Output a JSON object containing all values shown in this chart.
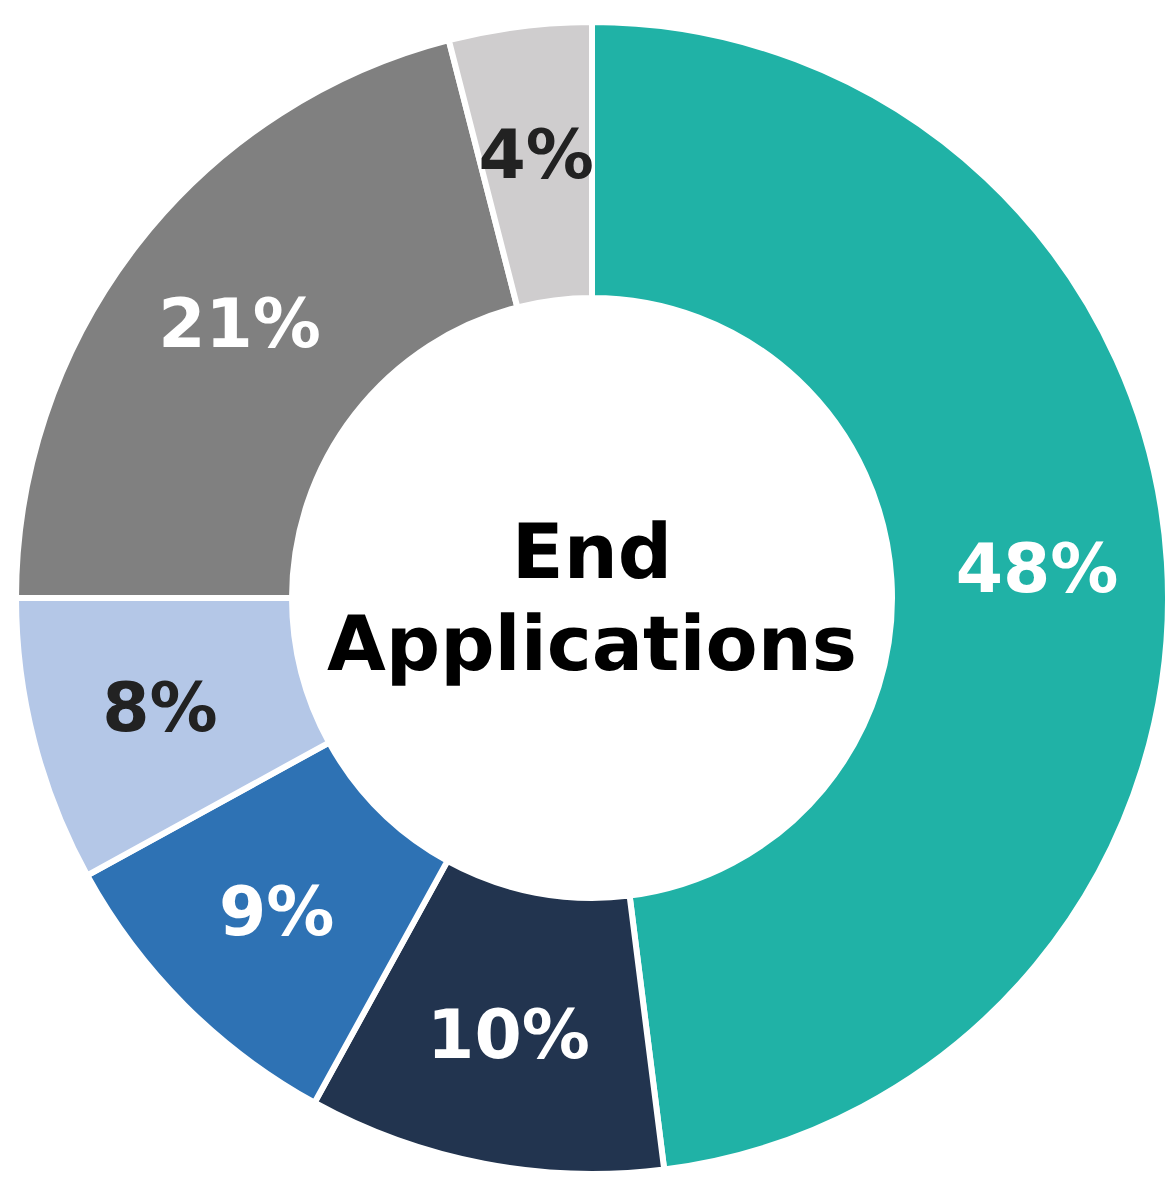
{
  "chart_data": {
    "type": "donut",
    "title": "End Applications",
    "categories": [
      null,
      null,
      null,
      null,
      null,
      null
    ],
    "values": [
      48,
      10,
      9,
      8,
      21,
      4
    ],
    "colors": [
      "#20b2a6",
      "#22344f",
      "#2e72b4",
      "#b4c7e7",
      "#808080",
      "#cfcdce"
    ],
    "value_labels": [
      "48%",
      "10%",
      "9%",
      "8%",
      "21%",
      "4%"
    ]
  }
}
